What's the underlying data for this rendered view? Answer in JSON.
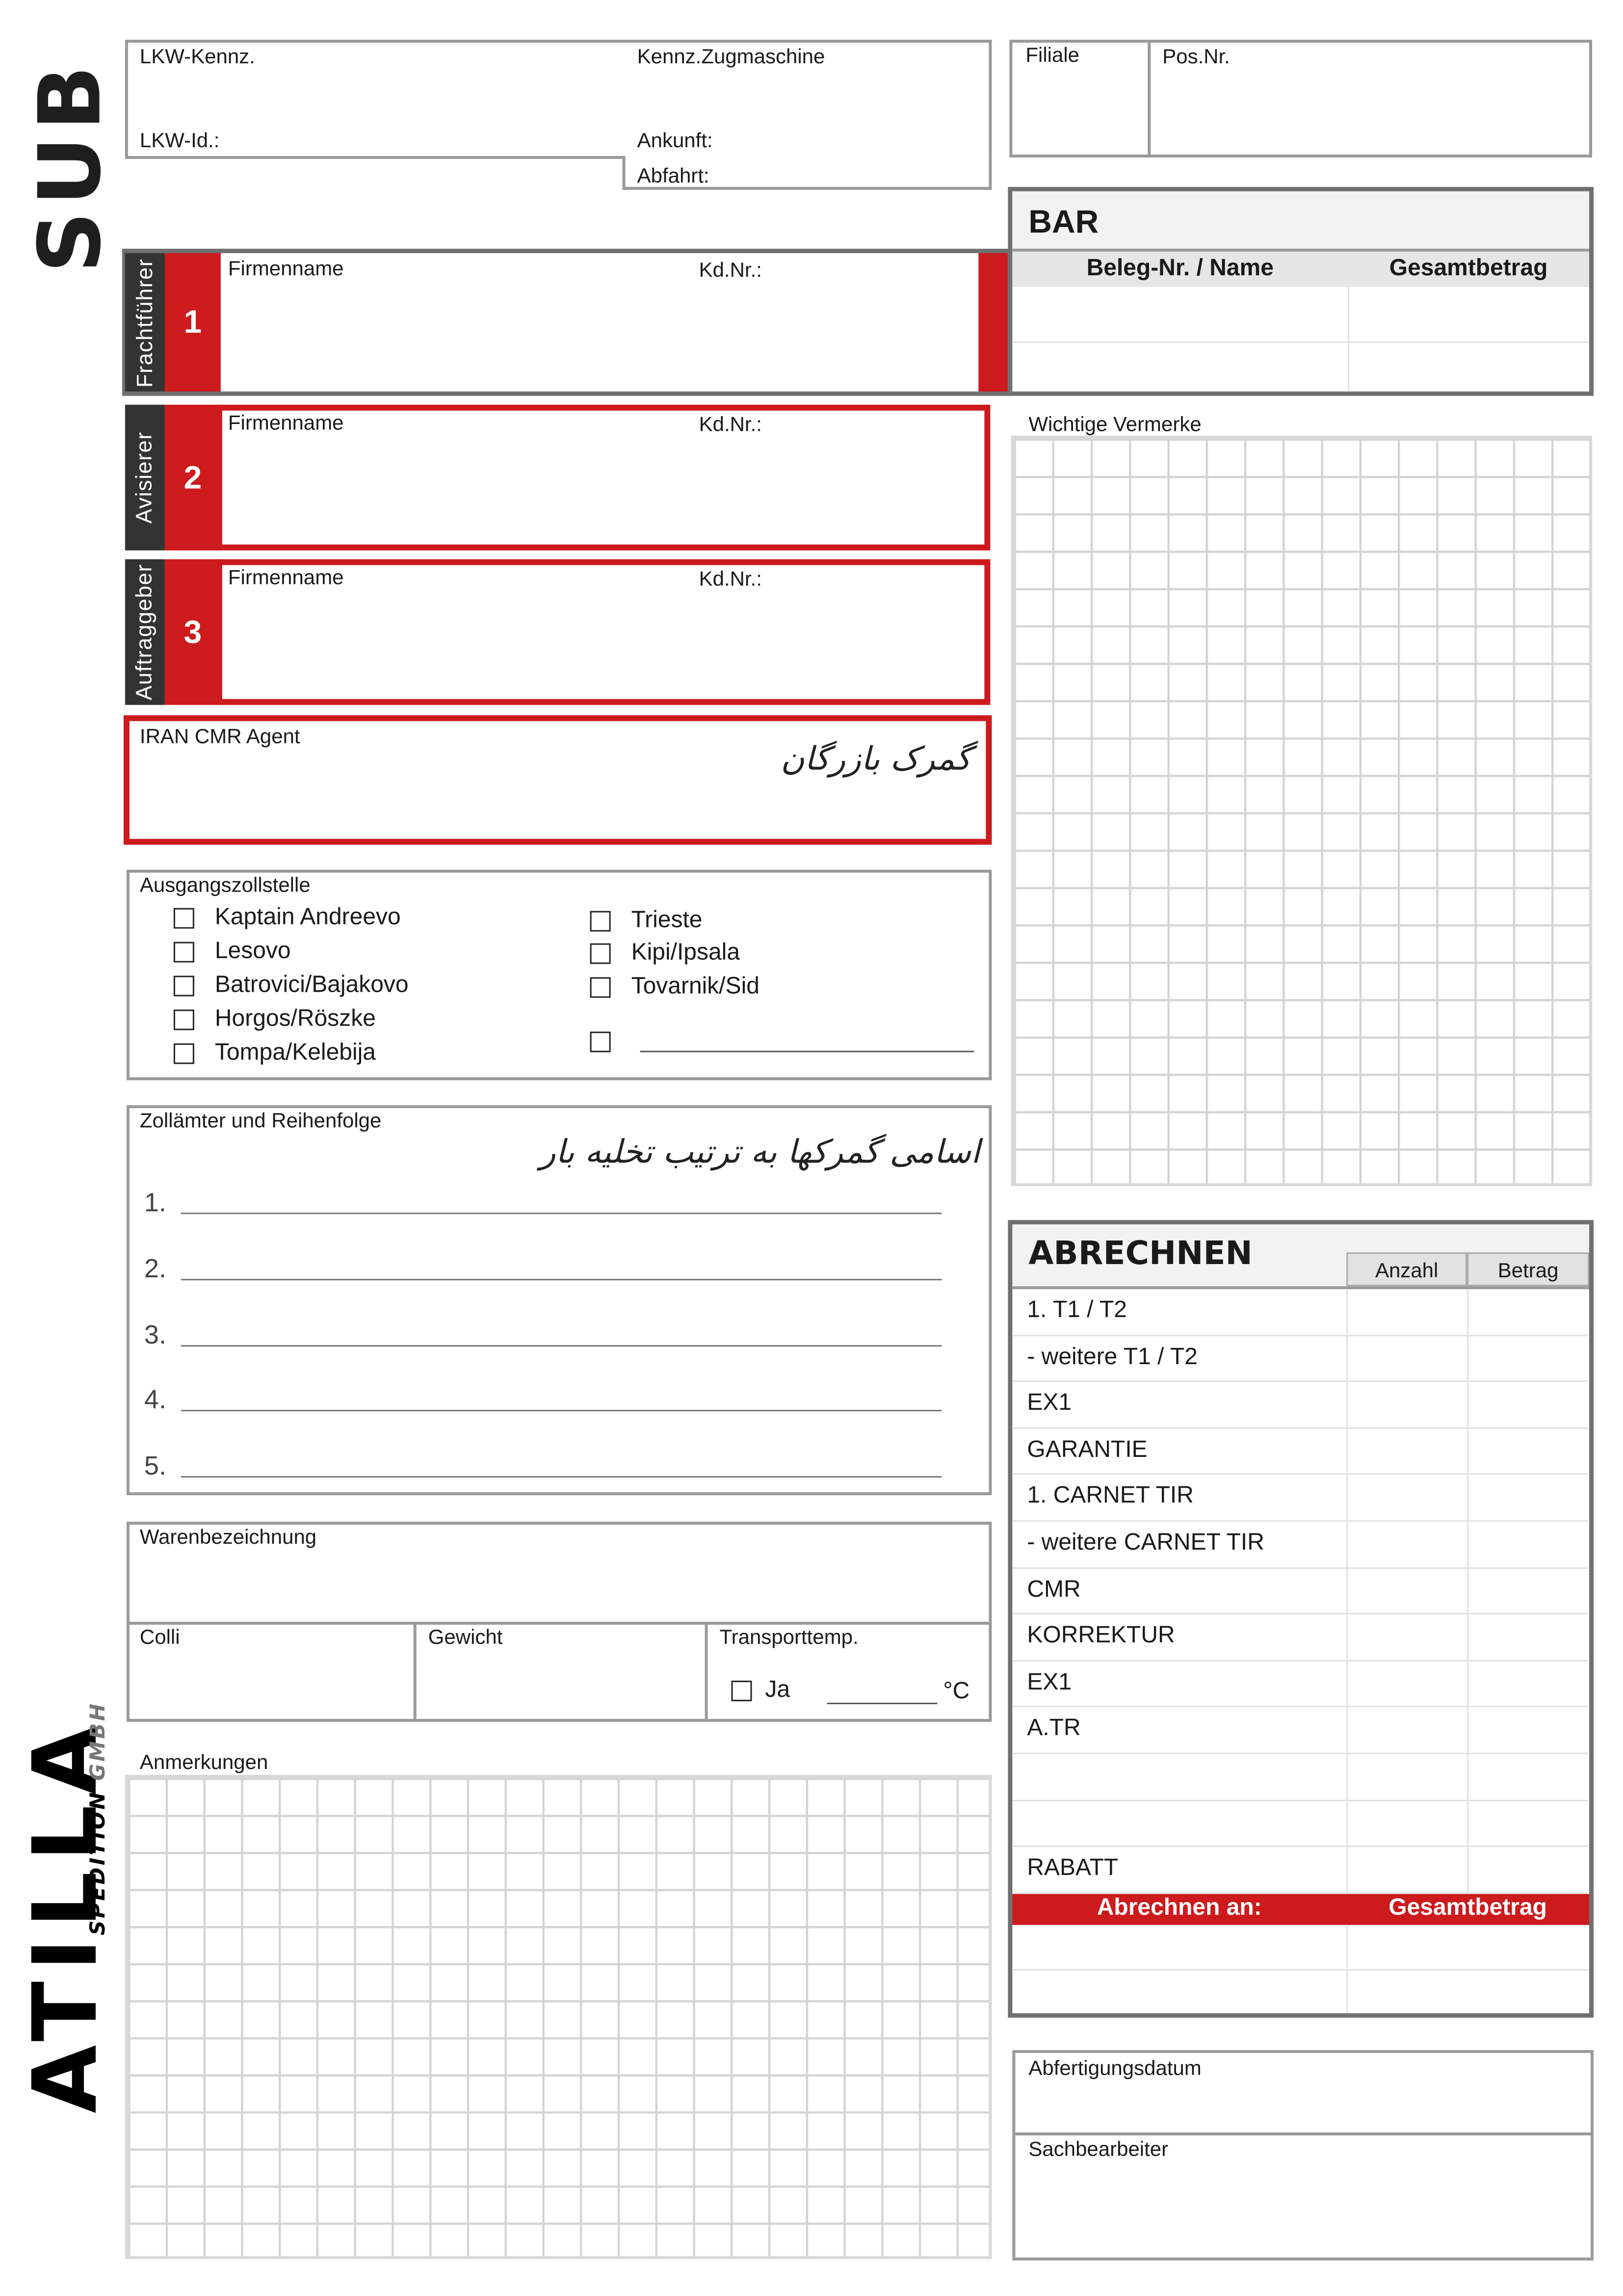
{
  "logos": {
    "top": "SUB",
    "bottom_main": "ATILLA",
    "bottom_sub": "SPEDITION",
    "bottom_suffix": "GMBH"
  },
  "truck": {
    "lkw_kennz": "LKW-Kennz.",
    "kennz_zugmaschine": "Kennz.Zugmaschine",
    "lkw_id": "LKW-Id.:",
    "ankunft": "Ankunft:",
    "abfahrt": "Abfahrt:"
  },
  "branch": {
    "filiale": "Filiale",
    "pos_nr": "Pos.Nr."
  },
  "parties": [
    {
      "role": "Frachtführer",
      "number": "1",
      "firm": "Firmenname",
      "kdnr": "Kd.Nr.:"
    },
    {
      "role": "Avisierer",
      "number": "2",
      "firm": "Firmenname",
      "kdnr": "Kd.Nr.:"
    },
    {
      "role": "Auftraggeber",
      "number": "3",
      "firm": "Firmenname",
      "kdnr": "Kd.Nr.:"
    }
  ],
  "agent": {
    "label": "IRAN CMR Agent",
    "handwritten": "گمرک بازرگان"
  },
  "bar": {
    "title": "BAR",
    "col1": "Beleg-Nr. / Name",
    "col2": "Gesamtbetrag"
  },
  "notes_label": "Wichtige Vermerke",
  "exit_customs": {
    "label": "Ausgangszollstelle",
    "left": [
      "Kaptain Andreevo",
      "Lesovo",
      "Batrovici/Bajakovo",
      "Horgos/Röszke",
      "Tompa/Kelebija"
    ],
    "right": [
      "Trieste",
      "Kipi/Ipsala",
      "Tovarnik/Sid"
    ]
  },
  "customs_offices": {
    "label": "Zollämter und Reihenfolge",
    "handwritten": "اسامی گمرکها به ترتیب تخلیه بار",
    "numbers": [
      "1.",
      "2.",
      "3.",
      "4.",
      "5."
    ]
  },
  "goods": {
    "label": "Warenbezeichnung",
    "colli": "Colli",
    "gewicht": "Gewicht",
    "transporttemp": "Transporttemp.",
    "ja": "Ja",
    "unit": "°C"
  },
  "remarks_label": "Anmerkungen",
  "billing": {
    "title": "ABRECHNEN",
    "col_anzahl": "Anzahl",
    "col_betrag": "Betrag",
    "items": [
      "1. T1 / T2",
      " - weitere T1 / T2",
      "EX1",
      "GARANTIE",
      "1. CARNET TIR",
      " - weitere CARNET TIR",
      "CMR",
      "KORREKTUR",
      "EX1",
      "A.TR",
      "",
      "",
      "RABATT"
    ],
    "bill_to": "Abrechnen an:",
    "total": "Gesamtbetrag"
  },
  "processing": {
    "date": "Abfertigungsdatum",
    "clerk": "Sachbearbeiter"
  },
  "colors": {
    "red": "#cc1a1d",
    "dark": "#333333",
    "gray": "#9a9a9a"
  }
}
